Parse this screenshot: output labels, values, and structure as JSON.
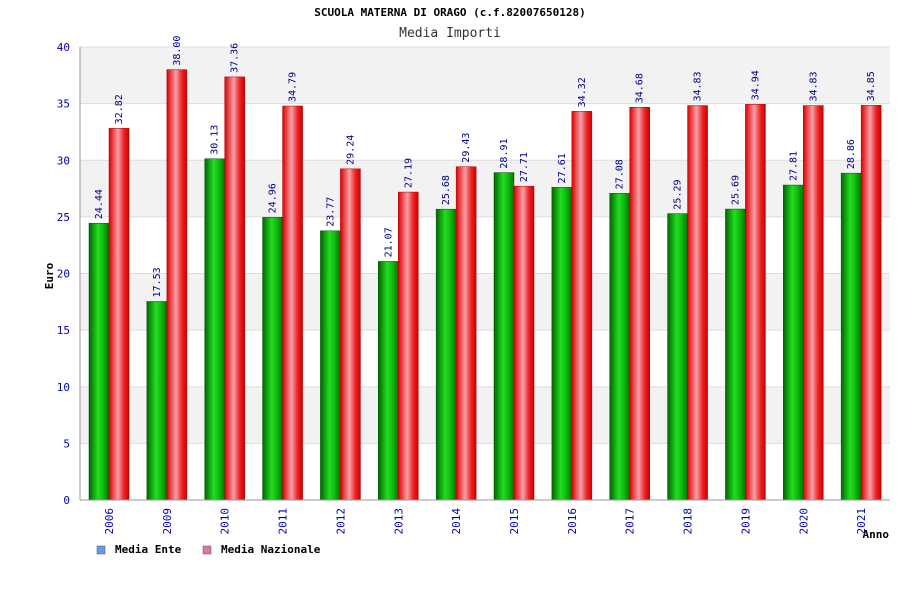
{
  "chart_data": {
    "type": "bar",
    "title": "SCUOLA MATERNA DI ORAGO (c.f.82007650128)",
    "subtitle": "Media Importi",
    "xlabel": "Anno",
    "ylabel": "Euro",
    "ylim": [
      0,
      40
    ],
    "yticks": [
      "0",
      "5",
      "10",
      "15",
      "20",
      "25",
      "30",
      "35",
      "40"
    ],
    "categories": [
      "2006",
      "2009",
      "2010",
      "2011",
      "2012",
      "2013",
      "2014",
      "2015",
      "2016",
      "2017",
      "2018",
      "2019",
      "2020",
      "2021"
    ],
    "series": [
      {
        "name": "Media Ente",
        "color": "#00cc00",
        "legend_color": "#6699ee",
        "values": [
          24.44,
          17.53,
          30.13,
          24.96,
          23.77,
          21.07,
          25.68,
          28.91,
          27.61,
          27.08,
          25.29,
          25.69,
          27.81,
          28.86
        ],
        "labels": [
          "24.44",
          "17.53",
          "30.13",
          "24.96",
          "23.77",
          "21.07",
          "25.68",
          "28.91",
          "27.61",
          "27.08",
          "25.29",
          "25.69",
          "27.81",
          "28.86"
        ]
      },
      {
        "name": "Media Nazionale",
        "color": "#ee1111",
        "legend_color": "#dd77aa",
        "values": [
          32.82,
          38.0,
          37.36,
          34.79,
          29.24,
          27.19,
          29.43,
          27.71,
          34.32,
          34.68,
          34.83,
          34.94,
          34.83,
          34.85
        ],
        "labels": [
          "32.82",
          "38.00",
          "37.36",
          "34.79",
          "29.24",
          "27.19",
          "29.43",
          "27.71",
          "34.32",
          "34.68",
          "34.83",
          "34.94",
          "34.83",
          "34.85"
        ]
      }
    ],
    "grid": true,
    "legend_position": "bottom-left"
  }
}
